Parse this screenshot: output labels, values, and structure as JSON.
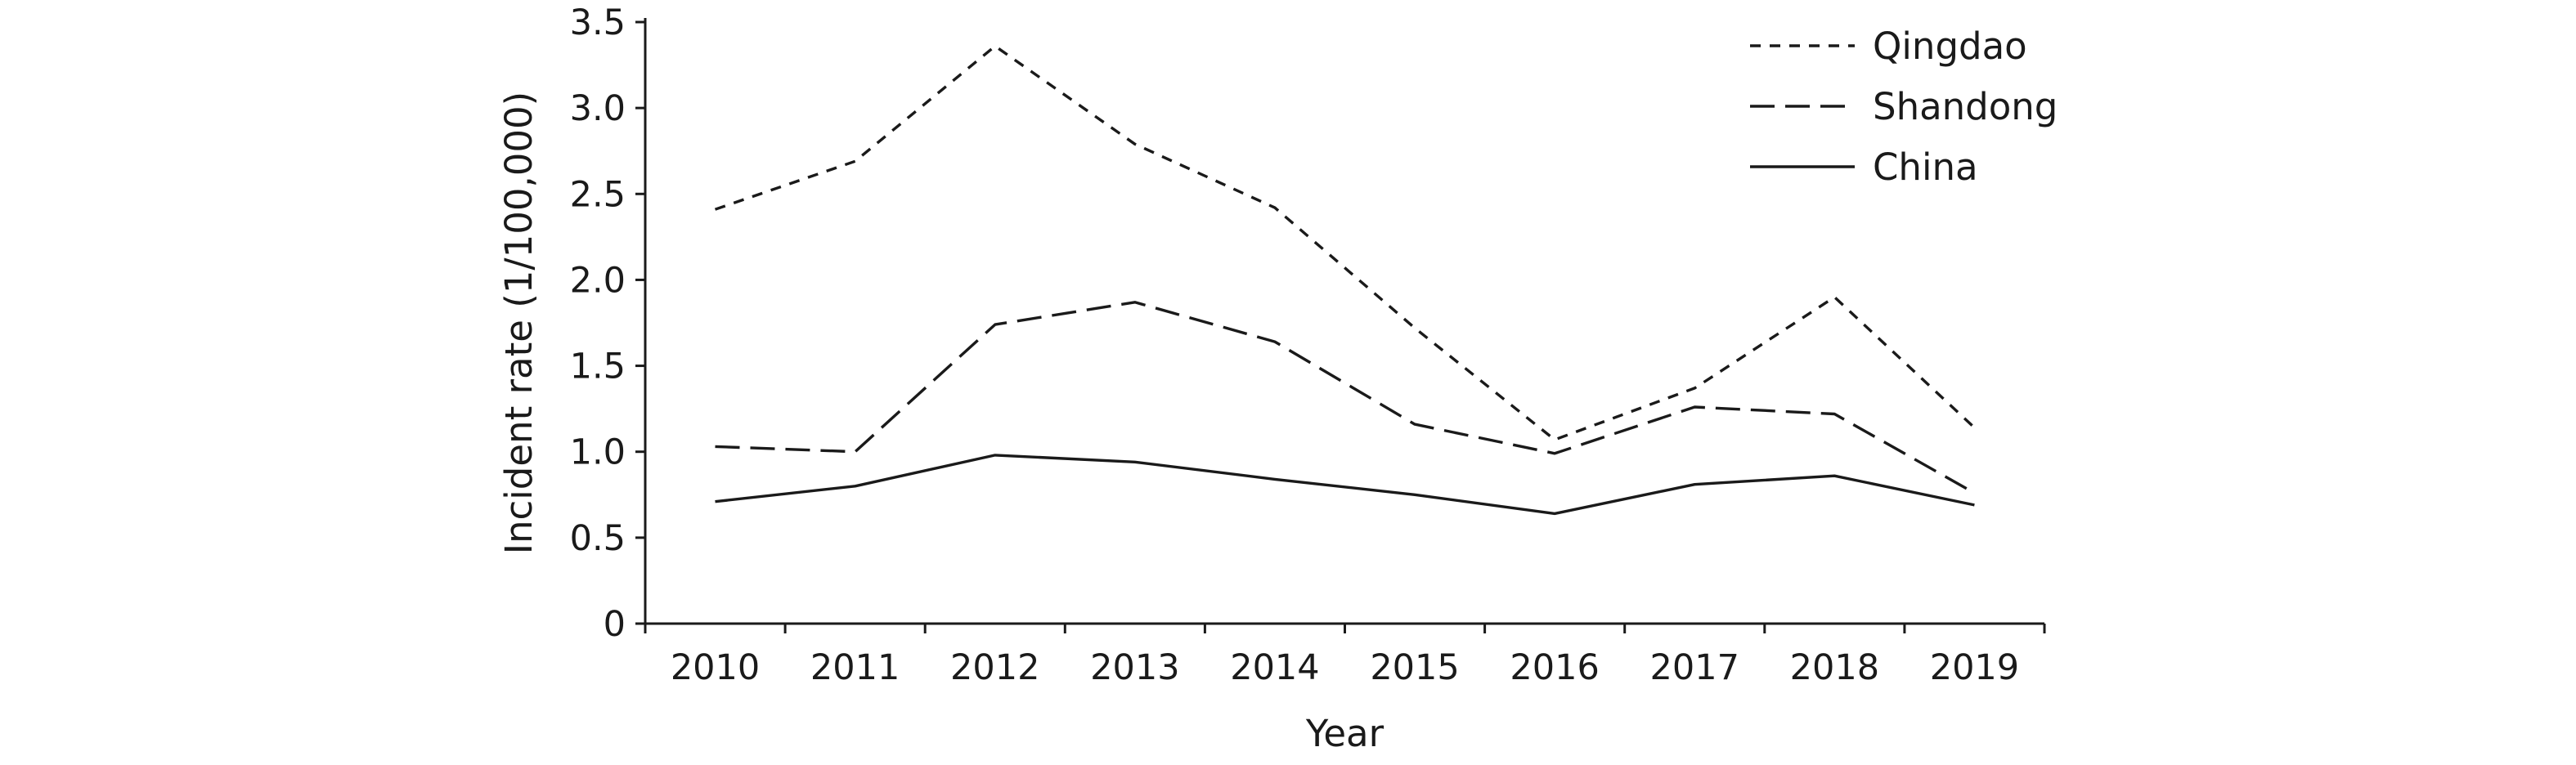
{
  "chart_data": {
    "type": "line",
    "title": "",
    "xlabel": "Year",
    "ylabel": "Incident rate (1/100,000)",
    "x": [
      "2010",
      "2011",
      "2012",
      "2013",
      "2014",
      "2015",
      "2016",
      "2017",
      "2018",
      "2019"
    ],
    "ylim": [
      0,
      3.5
    ],
    "yticks": [
      "0",
      "0.5",
      "1.0",
      "1.5",
      "2.0",
      "2.5",
      "3.0",
      "3.5"
    ],
    "grid": false,
    "legend": "top-right",
    "series": [
      {
        "name": "Qingdao",
        "style": "short-dash",
        "values": [
          2.41,
          2.69,
          3.36,
          2.79,
          2.42,
          1.72,
          1.07,
          1.37,
          1.9,
          1.14
        ]
      },
      {
        "name": "Shandong",
        "style": "long-dash",
        "values": [
          1.03,
          1.0,
          1.74,
          1.87,
          1.64,
          1.16,
          0.99,
          1.26,
          1.22,
          0.76
        ]
      },
      {
        "name": "China",
        "style": "solid",
        "values": [
          0.71,
          0.8,
          0.98,
          0.94,
          0.84,
          0.75,
          0.64,
          0.81,
          0.86,
          0.69
        ]
      }
    ]
  }
}
